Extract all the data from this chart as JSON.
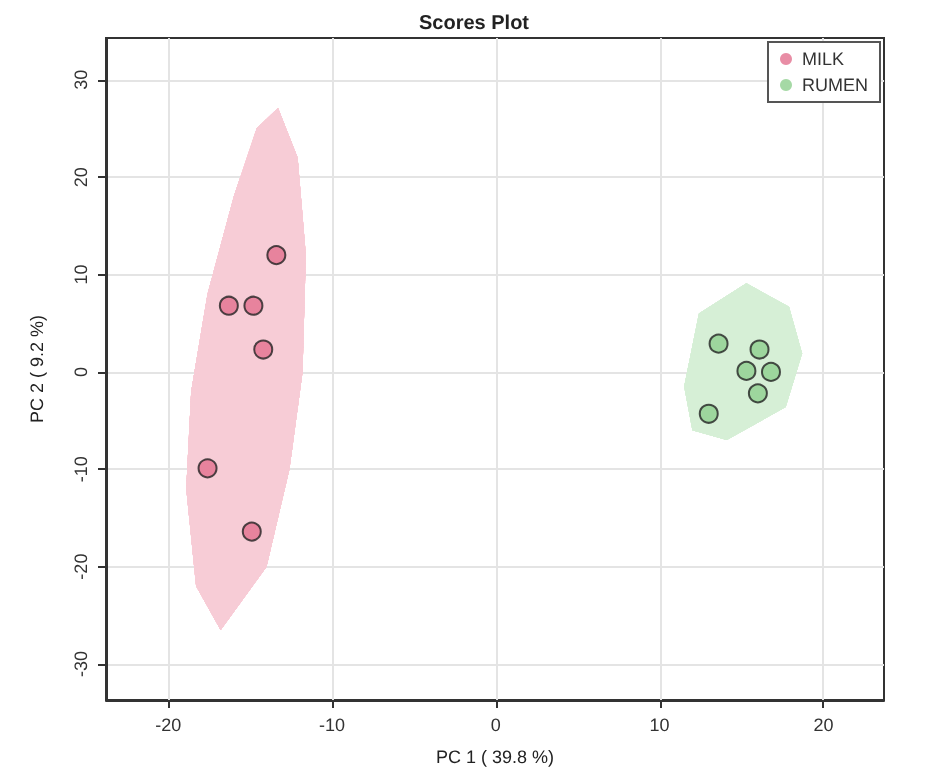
{
  "chart_data": {
    "type": "scatter",
    "title": "Scores Plot",
    "xlabel": "PC 1 ( 39.8 %)",
    "ylabel": "PC 2 ( 9.2 %)",
    "xlim": [
      -23.8,
      23.7
    ],
    "ylim": [
      -33.7,
      34.3
    ],
    "xticks": [
      -20,
      -10,
      0,
      10,
      20
    ],
    "yticks": [
      -30,
      -20,
      -10,
      0,
      10,
      20,
      30
    ],
    "grid": true,
    "legend": "top right",
    "marker": "circle",
    "series": [
      {
        "type": "area",
        "marker": "none",
        "color": "#f7ccd6",
        "x": [
          -13.3,
          -12.1,
          -11.6,
          -11.8,
          -12.6,
          -14,
          -16.8,
          -18.3,
          -18.9,
          -18.6,
          -17.6,
          -16,
          -14.6
        ],
        "values": [
          27.1,
          22,
          12,
          0,
          -10,
          -20,
          -26.5,
          -22,
          -12,
          -2,
          8,
          18,
          25
        ]
      },
      {
        "type": "area",
        "marker": "none",
        "color": "#d6efd6",
        "x": [
          15.3,
          17.9,
          18.7,
          17.7,
          14.1,
          12,
          11.5,
          12.4
        ],
        "values": [
          9.1,
          6.7,
          1.9,
          -3.6,
          -7,
          -6,
          -1.5,
          6
        ]
      },
      {
        "name": "MILK",
        "color": "#e2708e",
        "x": [
          -13.4,
          -16.3,
          -14.8,
          -14.2,
          -17.6,
          -14.9
        ],
        "values": [
          12,
          6.8,
          6.8,
          2.3,
          -9.9,
          -16.4
        ]
      },
      {
        "name": "RUMEN",
        "color": "#8fcf8f",
        "x": [
          13.6,
          16.1,
          15.3,
          16.8,
          16,
          13
        ],
        "values": [
          2.9,
          2.3,
          0.1,
          0,
          -2.2,
          -4.3
        ]
      }
    ]
  }
}
